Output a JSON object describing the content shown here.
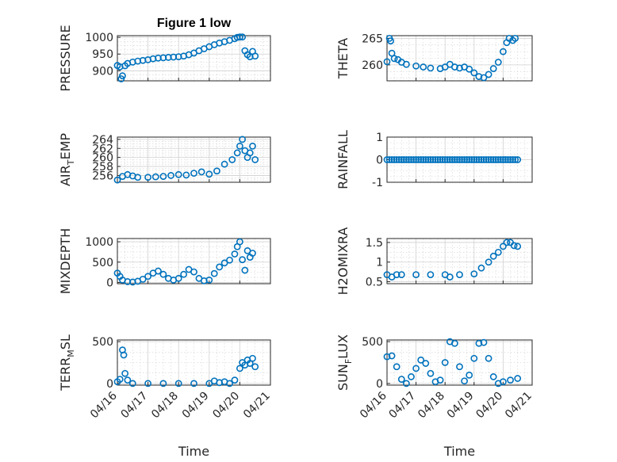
{
  "chart_data": [
    {
      "type": "scatter",
      "title": "Figure 1 low",
      "ylabel": "PRESSURE",
      "xlim": [
        "04/16",
        "04/21"
      ],
      "ylim": [
        870,
        1005
      ],
      "yticks": [
        900,
        950,
        1000
      ],
      "x_ticklabels": [],
      "points": [
        [
          "04/16 00:00",
          916
        ],
        [
          "04/16 02:00",
          912
        ],
        [
          "04/16 03:00",
          876
        ],
        [
          "04/16 04:00",
          885
        ],
        [
          "04/16 06:00",
          915
        ],
        [
          "04/16 08:00",
          922
        ],
        [
          "04/16 12:00",
          926
        ],
        [
          "04/16 16:00",
          929
        ],
        [
          "04/16 20:00",
          931
        ],
        [
          "04/17 00:00",
          933
        ],
        [
          "04/17 04:00",
          936
        ],
        [
          "04/17 08:00",
          938
        ],
        [
          "04/17 12:00",
          939
        ],
        [
          "04/17 16:00",
          940
        ],
        [
          "04/17 20:00",
          941
        ],
        [
          "04/18 00:00",
          942
        ],
        [
          "04/18 04:00",
          944
        ],
        [
          "04/18 08:00",
          948
        ],
        [
          "04/18 12:00",
          953
        ],
        [
          "04/18 16:00",
          960
        ],
        [
          "04/18 20:00",
          966
        ],
        [
          "04/19 00:00",
          972
        ],
        [
          "04/19 04:00",
          978
        ],
        [
          "04/19 08:00",
          983
        ],
        [
          "04/19 12:00",
          987
        ],
        [
          "04/19 16:00",
          991
        ],
        [
          "04/19 20:00",
          996
        ],
        [
          "04/19 22:00",
          1000
        ],
        [
          "04/20 00:00",
          1001
        ],
        [
          "04/20 02:00",
          1001
        ],
        [
          "04/20 04:00",
          960
        ],
        [
          "04/20 06:00",
          948
        ],
        [
          "04/20 08:00",
          942
        ],
        [
          "04/20 10:00",
          958
        ],
        [
          "04/20 12:00",
          944
        ]
      ]
    },
    {
      "type": "scatter",
      "ylabel": "THETA",
      "xlim": [
        "04/16",
        "04/21"
      ],
      "ylim": [
        257,
        265.5
      ],
      "yticks": [
        260,
        265
      ],
      "x_ticklabels": [],
      "points": [
        [
          "04/16 00:00",
          260.6
        ],
        [
          "04/16 02:00",
          265.0
        ],
        [
          "04/16 03:00",
          264.5
        ],
        [
          "04/16 04:00",
          262.2
        ],
        [
          "04/16 06:00",
          261.2
        ],
        [
          "04/16 09:00",
          261.0
        ],
        [
          "04/16 12:00",
          260.5
        ],
        [
          "04/16 16:00",
          260.1
        ],
        [
          "04/17 00:00",
          259.8
        ],
        [
          "04/17 06:00",
          259.6
        ],
        [
          "04/17 12:00",
          259.4
        ],
        [
          "04/17 20:00",
          259.3
        ],
        [
          "04/18 00:00",
          259.6
        ],
        [
          "04/18 04:00",
          260.1
        ],
        [
          "04/18 08:00",
          259.6
        ],
        [
          "04/18 12:00",
          259.4
        ],
        [
          "04/18 16:00",
          259.6
        ],
        [
          "04/18 20:00",
          259.2
        ],
        [
          "04/19 00:00",
          258.5
        ],
        [
          "04/19 04:00",
          257.8
        ],
        [
          "04/19 08:00",
          257.6
        ],
        [
          "04/19 12:00",
          258.2
        ],
        [
          "04/19 16:00",
          259.3
        ],
        [
          "04/19 20:00",
          260.5
        ],
        [
          "04/20 00:00",
          262.5
        ],
        [
          "04/20 03:00",
          264.2
        ],
        [
          "04/20 05:00",
          265.0
        ],
        [
          "04/20 08:00",
          264.6
        ],
        [
          "04/20 10:00",
          265.0
        ]
      ]
    },
    {
      "type": "scatter",
      "ylabel": "AIR_TEMP",
      "xlim": [
        "04/16",
        "04/21"
      ],
      "ylim": [
        254.5,
        264.5
      ],
      "yticks": [
        256,
        258,
        260,
        262,
        264
      ],
      "x_ticklabels": [],
      "points": [
        [
          "04/16 00:00",
          255.0
        ],
        [
          "04/16 04:00",
          255.8
        ],
        [
          "04/16 08:00",
          256.2
        ],
        [
          "04/16 12:00",
          255.9
        ],
        [
          "04/16 16:00",
          255.6
        ],
        [
          "04/17 00:00",
          255.6
        ],
        [
          "04/17 06:00",
          255.7
        ],
        [
          "04/17 12:00",
          255.8
        ],
        [
          "04/17 18:00",
          256.0
        ],
        [
          "04/18 00:00",
          256.2
        ],
        [
          "04/18 06:00",
          256.1
        ],
        [
          "04/18 12:00",
          256.5
        ],
        [
          "04/18 18:00",
          256.8
        ],
        [
          "04/19 00:00",
          256.3
        ],
        [
          "04/19 06:00",
          257.0
        ],
        [
          "04/19 12:00",
          258.5
        ],
        [
          "04/19 18:00",
          259.5
        ],
        [
          "04/19 22:00",
          261.0
        ],
        [
          "04/20 00:00",
          262.5
        ],
        [
          "04/20 02:00",
          264.0
        ],
        [
          "04/20 04:00",
          261.5
        ],
        [
          "04/20 06:00",
          260.0
        ],
        [
          "04/20 08:00",
          261.0
        ],
        [
          "04/20 10:00",
          262.5
        ],
        [
          "04/20 12:00",
          259.5
        ]
      ]
    },
    {
      "type": "scatter",
      "ylabel": "RAINFALL",
      "xlim": [
        "04/16",
        "04/21"
      ],
      "ylim": [
        -1,
        1
      ],
      "yticks": [
        -1,
        0,
        1
      ],
      "x_ticklabels": [],
      "series_constant": {
        "from": "04/16 00:00",
        "to": "04/20 12:00",
        "y": 0,
        "step_hours": 2
      }
    },
    {
      "type": "scatter",
      "ylabel": "MIXDEPTH",
      "xlim": [
        "04/16",
        "04/21"
      ],
      "ylim": [
        -30,
        1080
      ],
      "yticks": [
        0,
        500,
        1000
      ],
      "x_ticklabels": [],
      "points": [
        [
          "04/16 00:00",
          230
        ],
        [
          "04/16 02:00",
          150
        ],
        [
          "04/16 04:00",
          60
        ],
        [
          "04/16 08:00",
          20
        ],
        [
          "04/16 12:00",
          10
        ],
        [
          "04/16 16:00",
          30
        ],
        [
          "04/16 20:00",
          80
        ],
        [
          "04/17 00:00",
          150
        ],
        [
          "04/17 04:00",
          230
        ],
        [
          "04/17 08:00",
          280
        ],
        [
          "04/17 12:00",
          200
        ],
        [
          "04/17 16:00",
          100
        ],
        [
          "04/17 20:00",
          60
        ],
        [
          "04/18 00:00",
          100
        ],
        [
          "04/18 04:00",
          200
        ],
        [
          "04/18 08:00",
          320
        ],
        [
          "04/18 12:00",
          260
        ],
        [
          "04/18 16:00",
          100
        ],
        [
          "04/18 20:00",
          40
        ],
        [
          "04/19 00:00",
          60
        ],
        [
          "04/19 04:00",
          220
        ],
        [
          "04/19 08:00",
          380
        ],
        [
          "04/19 12:00",
          480
        ],
        [
          "04/19 16:00",
          550
        ],
        [
          "04/19 20:00",
          700
        ],
        [
          "04/19 22:00",
          880
        ],
        [
          "04/20 00:00",
          1000
        ],
        [
          "04/20 02:00",
          560
        ],
        [
          "04/20 04:00",
          300
        ],
        [
          "04/20 06:00",
          780
        ],
        [
          "04/20 08:00",
          620
        ],
        [
          "04/20 10:00",
          720
        ]
      ]
    },
    {
      "type": "scatter",
      "ylabel": "H2OMIXRA",
      "xlim": [
        "04/16",
        "04/21"
      ],
      "ylim": [
        0.45,
        1.6
      ],
      "yticks": [
        0.5,
        1,
        1.5
      ],
      "x_ticklabels": [],
      "points": [
        [
          "04/16 00:00",
          0.68
        ],
        [
          "04/16 04:00",
          0.62
        ],
        [
          "04/16 08:00",
          0.68
        ],
        [
          "04/16 12:00",
          0.68
        ],
        [
          "04/17 00:00",
          0.68
        ],
        [
          "04/17 12:00",
          0.68
        ],
        [
          "04/18 00:00",
          0.68
        ],
        [
          "04/18 04:00",
          0.62
        ],
        [
          "04/18 12:00",
          0.68
        ],
        [
          "04/19 00:00",
          0.7
        ],
        [
          "04/19 06:00",
          0.85
        ],
        [
          "04/19 12:00",
          1.0
        ],
        [
          "04/19 16:00",
          1.15
        ],
        [
          "04/19 20:00",
          1.25
        ],
        [
          "04/20 00:00",
          1.4
        ],
        [
          "04/20 03:00",
          1.5
        ],
        [
          "04/20 06:00",
          1.5
        ],
        [
          "04/20 09:00",
          1.42
        ],
        [
          "04/20 12:00",
          1.4
        ]
      ]
    },
    {
      "type": "scatter",
      "ylabel": "TERR_MSL",
      "xlabel": "Time",
      "xlim": [
        "04/16",
        "04/21"
      ],
      "ylim": [
        -20,
        520
      ],
      "yticks": [
        0,
        500
      ],
      "x_ticklabels": [
        "04/16",
        "04/17",
        "04/18",
        "04/19",
        "04/20",
        "04/21"
      ],
      "points": [
        [
          "04/16 00:00",
          20
        ],
        [
          "04/16 02:00",
          50
        ],
        [
          "04/16 04:00",
          400
        ],
        [
          "04/16 05:00",
          340
        ],
        [
          "04/16 06:00",
          120
        ],
        [
          "04/16 08:00",
          40
        ],
        [
          "04/16 12:00",
          0
        ],
        [
          "04/17 00:00",
          0
        ],
        [
          "04/17 12:00",
          0
        ],
        [
          "04/18 00:00",
          0
        ],
        [
          "04/18 12:00",
          0
        ],
        [
          "04/19 00:00",
          0
        ],
        [
          "04/19 04:00",
          30
        ],
        [
          "04/19 08:00",
          10
        ],
        [
          "04/19 12:00",
          20
        ],
        [
          "04/19 16:00",
          0
        ],
        [
          "04/19 20:00",
          40
        ],
        [
          "04/20 00:00",
          180
        ],
        [
          "04/20 02:00",
          250
        ],
        [
          "04/20 04:00",
          220
        ],
        [
          "04/20 06:00",
          280
        ],
        [
          "04/20 08:00",
          240
        ],
        [
          "04/20 10:00",
          300
        ],
        [
          "04/20 12:00",
          200
        ]
      ]
    },
    {
      "type": "scatter",
      "ylabel": "SUN_FLUX",
      "xlabel": "Time",
      "xlim": [
        "04/16",
        "04/21"
      ],
      "ylim": [
        -20,
        520
      ],
      "yticks": [
        0,
        500
      ],
      "x_ticklabels": [
        "04/16",
        "04/17",
        "04/18",
        "04/19",
        "04/20",
        "04/21"
      ],
      "points": [
        [
          "04/16 00:00",
          320
        ],
        [
          "04/16 04:00",
          330
        ],
        [
          "04/16 08:00",
          200
        ],
        [
          "04/16 12:00",
          50
        ],
        [
          "04/16 16:00",
          0
        ],
        [
          "04/16 20:00",
          80
        ],
        [
          "04/17 00:00",
          180
        ],
        [
          "04/17 04:00",
          280
        ],
        [
          "04/17 08:00",
          240
        ],
        [
          "04/17 12:00",
          120
        ],
        [
          "04/17 16:00",
          20
        ],
        [
          "04/17 20:00",
          40
        ],
        [
          "04/18 00:00",
          250
        ],
        [
          "04/18 04:00",
          500
        ],
        [
          "04/18 08:00",
          480
        ],
        [
          "04/18 12:00",
          200
        ],
        [
          "04/18 16:00",
          30
        ],
        [
          "04/18 20:00",
          100
        ],
        [
          "04/19 00:00",
          300
        ],
        [
          "04/19 04:00",
          480
        ],
        [
          "04/19 08:00",
          490
        ],
        [
          "04/19 12:00",
          300
        ],
        [
          "04/19 16:00",
          80
        ],
        [
          "04/19 20:00",
          0
        ],
        [
          "04/20 00:00",
          20
        ],
        [
          "04/20 06:00",
          40
        ],
        [
          "04/20 12:00",
          60
        ]
      ]
    }
  ],
  "colors": {
    "marker": "#0072bd",
    "axes": "#262626",
    "grid": "#d0d0d0",
    "background": "#ffffff"
  }
}
